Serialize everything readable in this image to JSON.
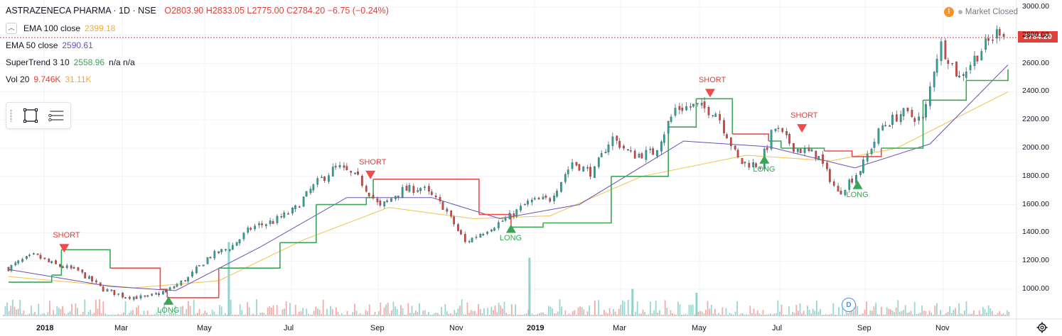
{
  "header": {
    "symbol": "ASTRAZENECA PHARMA · 1D · NSE",
    "ohlc": "O2803.90  H2833.05  L2775.00  C2784.20  −6.75 (−0.24%)"
  },
  "indicators": [
    {
      "label": "EMA 100 close",
      "value": "2399.18",
      "value2": "",
      "color": "#f2a93b"
    },
    {
      "label": "EMA 50 close",
      "value": "2590.61",
      "value2": "",
      "color": "#6a4fb3"
    },
    {
      "label": "SuperTrend 3 10",
      "value": "2558.96",
      "value2": "n/a  n/a",
      "color": "#3aa655"
    },
    {
      "label": "Vol 20",
      "value": "9.746K",
      "value2": "31.11K",
      "color": "#e0413a"
    }
  ],
  "status": {
    "market": "Market Closed"
  },
  "last_price": "2784.20",
  "y_ticks": [
    "3000.00",
    "2800.00",
    "2600.00",
    "2400.00",
    "2200.00",
    "2000.00",
    "1800.00",
    "1600.00",
    "1400.00",
    "1200.00",
    "1000.00"
  ],
  "x_ticks": [
    {
      "label": "2018",
      "bold": true
    },
    {
      "label": "Mar",
      "bold": false
    },
    {
      "label": "May",
      "bold": false
    },
    {
      "label": "Jul",
      "bold": false
    },
    {
      "label": "Sep",
      "bold": false
    },
    {
      "label": "Nov",
      "bold": false
    },
    {
      "label": "2019",
      "bold": true
    },
    {
      "label": "Mar",
      "bold": false
    },
    {
      "label": "May",
      "bold": false
    },
    {
      "label": "Jul",
      "bold": false
    },
    {
      "label": "Sep",
      "bold": false
    },
    {
      "label": "Nov",
      "bold": false
    }
  ],
  "signals": [
    {
      "type": "short",
      "label": "SHORT"
    },
    {
      "type": "long",
      "label": "LONG"
    },
    {
      "type": "short",
      "label": "SHORT"
    },
    {
      "type": "long",
      "label": "LONG"
    },
    {
      "type": "short",
      "label": "SHORT"
    },
    {
      "type": "long",
      "label": "LONG"
    },
    {
      "type": "short",
      "label": "SHORT"
    },
    {
      "type": "long",
      "label": "LONG"
    }
  ],
  "events": {
    "dividend": "D"
  },
  "colors": {
    "up": "#26a69a",
    "down": "#e0413a",
    "ema100": "#f2c14e",
    "ema50": "#6a4fb3",
    "supertrend_up": "#3aa655",
    "supertrend_down": "#f04a4a",
    "vol_up": "#8fd3cc",
    "vol_down": "#f2a3a0"
  },
  "chart_data": {
    "type": "line",
    "title": "ASTRAZENECA PHARMA · 1D · NSE",
    "ylim": [
      850,
      3050
    ],
    "y_scale": "linear",
    "grid": true,
    "legend": "top-left",
    "price_close_path": [
      [
        "2018-01-01",
        1150
      ],
      [
        "2018-01-10",
        1200
      ],
      [
        "2018-01-20",
        1240
      ],
      [
        "2018-02-01",
        1180
      ],
      [
        "2018-02-20",
        1130
      ],
      [
        "2018-03-10",
        1000
      ],
      [
        "2018-03-25",
        950
      ],
      [
        "2018-04-10",
        940
      ],
      [
        "2018-04-25",
        990
      ],
      [
        "2018-05-10",
        1080
      ],
      [
        "2018-05-25",
        1230
      ],
      [
        "2018-06-10",
        1300
      ],
      [
        "2018-06-25",
        1440
      ],
      [
        "2018-07-10",
        1480
      ],
      [
        "2018-07-25",
        1560
      ],
      [
        "2018-08-10",
        1750
      ],
      [
        "2018-08-25",
        1870
      ],
      [
        "2018-09-10",
        1780
      ],
      [
        "2018-09-25",
        1580
      ],
      [
        "2018-10-10",
        1700
      ],
      [
        "2018-10-25",
        1720
      ],
      [
        "2018-11-10",
        1580
      ],
      [
        "2018-11-25",
        1330
      ],
      [
        "2018-12-10",
        1420
      ],
      [
        "2018-12-25",
        1500
      ],
      [
        "2019-01-10",
        1620
      ],
      [
        "2019-01-25",
        1640
      ],
      [
        "2019-02-10",
        1900
      ],
      [
        "2019-02-25",
        1820
      ],
      [
        "2019-03-10",
        2080
      ],
      [
        "2019-03-25",
        1950
      ],
      [
        "2019-04-10",
        1970
      ],
      [
        "2019-04-25",
        2280
      ],
      [
        "2019-05-10",
        2300
      ],
      [
        "2019-05-25",
        2250
      ],
      [
        "2019-06-10",
        1900
      ],
      [
        "2019-06-25",
        1880
      ],
      [
        "2019-07-05",
        2150
      ],
      [
        "2019-07-20",
        2000
      ],
      [
        "2019-08-05",
        1950
      ],
      [
        "2019-08-20",
        1680
      ],
      [
        "2019-09-05",
        1850
      ],
      [
        "2019-09-20",
        2150
      ],
      [
        "2019-10-05",
        2250
      ],
      [
        "2019-10-20",
        2200
      ],
      [
        "2019-11-01",
        2750
      ],
      [
        "2019-11-15",
        2500
      ],
      [
        "2019-12-01",
        2700
      ],
      [
        "2019-12-15",
        2850
      ],
      [
        "2019-12-20",
        2784.2
      ]
    ],
    "series": [
      {
        "name": "EMA 100 close",
        "last": 2399.18,
        "points": [
          [
            "2018-01-01",
            1090
          ],
          [
            "2018-04-01",
            1010
          ],
          [
            "2018-06-01",
            1060
          ],
          [
            "2018-08-01",
            1350
          ],
          [
            "2018-10-01",
            1580
          ],
          [
            "2018-12-01",
            1500
          ],
          [
            "2019-01-25",
            1520
          ],
          [
            "2019-04-01",
            1800
          ],
          [
            "2019-06-15",
            1950
          ],
          [
            "2019-08-15",
            1910
          ],
          [
            "2019-10-01",
            2000
          ],
          [
            "2019-12-20",
            2399.18
          ]
        ]
      },
      {
        "name": "EMA 50 close",
        "last": 2590.61,
        "points": [
          [
            "2018-01-01",
            1140
          ],
          [
            "2018-03-15",
            1020
          ],
          [
            "2018-05-01",
            990
          ],
          [
            "2018-07-01",
            1300
          ],
          [
            "2018-09-01",
            1650
          ],
          [
            "2018-11-01",
            1650
          ],
          [
            "2018-12-20",
            1500
          ],
          [
            "2019-02-15",
            1600
          ],
          [
            "2019-05-01",
            2050
          ],
          [
            "2019-07-01",
            2010
          ],
          [
            "2019-09-01",
            1860
          ],
          [
            "2019-10-25",
            2030
          ],
          [
            "2019-12-20",
            2590.61
          ]
        ]
      },
      {
        "name": "SuperTrend 3 10",
        "last": 2558.96,
        "points": [
          [
            "2018-01-01",
            1050
          ],
          [
            "2018-02-01",
            1100
          ],
          [
            "2018-02-08",
            1280
          ],
          [
            "2018-03-15",
            1150
          ],
          [
            "2018-04-20",
            1000
          ],
          [
            "2018-04-25",
            940
          ],
          [
            "2018-06-01",
            1150
          ],
          [
            "2018-07-15",
            1330
          ],
          [
            "2018-08-10",
            1600
          ],
          [
            "2018-09-15",
            1650
          ],
          [
            "2018-09-20",
            1780
          ],
          [
            "2018-11-10",
            1780
          ],
          [
            "2018-12-05",
            1530
          ],
          [
            "2018-12-28",
            1440
          ],
          [
            "2019-01-20",
            1470
          ],
          [
            "2019-03-10",
            1800
          ],
          [
            "2019-04-20",
            2150
          ],
          [
            "2019-05-10",
            2350
          ],
          [
            "2019-06-05",
            2100
          ],
          [
            "2019-07-01",
            2050
          ],
          [
            "2019-07-10",
            2000
          ],
          [
            "2019-08-10",
            1980
          ],
          [
            "2019-08-30",
            1940
          ],
          [
            "2019-09-20",
            2000
          ],
          [
            "2019-10-20",
            2340
          ],
          [
            "2019-11-20",
            2480
          ],
          [
            "2019-12-20",
            2558.96
          ]
        ]
      }
    ],
    "signals": [
      {
        "date": "2018-02-10",
        "type": "SHORT",
        "price": 1280
      },
      {
        "date": "2018-04-26",
        "type": "LONG",
        "price": 930
      },
      {
        "date": "2018-09-18",
        "type": "SHORT",
        "price": 1800
      },
      {
        "date": "2018-12-28",
        "type": "LONG",
        "price": 1440
      },
      {
        "date": "2019-05-20",
        "type": "SHORT",
        "price": 2380
      },
      {
        "date": "2019-06-28",
        "type": "LONG",
        "price": 1930
      },
      {
        "date": "2019-07-25",
        "type": "SHORT",
        "price": 2130
      },
      {
        "date": "2019-09-03",
        "type": "LONG",
        "price": 1750
      }
    ],
    "volume_spikes": [
      {
        "date": "2018-06-08",
        "volume_rel": 0.95
      },
      {
        "date": "2019-01-10",
        "volume_rel": 0.75
      },
      {
        "date": "2019-03-25",
        "volume_rel": 0.35
      },
      {
        "date": "2019-05-10",
        "volume_rel": 0.3
      }
    ]
  }
}
